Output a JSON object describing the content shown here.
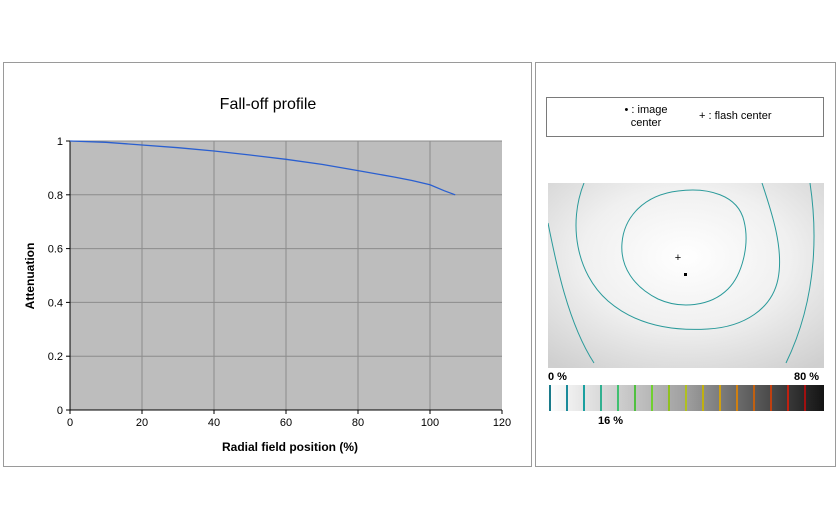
{
  "chart_data": {
    "type": "line",
    "title": "Fall-off profile",
    "xlabel": "Radial field position (%)",
    "ylabel": "Attenuation",
    "xlim": [
      0,
      120
    ],
    "ylim": [
      0,
      1
    ],
    "xticks": [
      "0",
      "20",
      "40",
      "60",
      "80",
      "100",
      "120"
    ],
    "yticks": [
      "0",
      "0.2",
      "0.4",
      "0.6",
      "0.8",
      "1"
    ],
    "grid": true,
    "series": [
      {
        "color": "#2a5fd0",
        "x": [
          0,
          10,
          20,
          30,
          40,
          50,
          60,
          70,
          80,
          90,
          95,
          100,
          104,
          107
        ],
        "y": [
          1.0,
          0.995,
          0.985,
          0.975,
          0.963,
          0.948,
          0.932,
          0.913,
          0.89,
          0.866,
          0.853,
          0.837,
          0.815,
          0.8
        ]
      }
    ]
  },
  "legend": {
    "image_center_symbol": "•",
    "image_center_text": ": image center",
    "flash_center_symbol": "+",
    "flash_center_text": ": flash center"
  },
  "scale": {
    "min_label": "0 %",
    "max_label": "80 %",
    "marker_label": "16 %"
  },
  "colors": {
    "plot_background": "#bdbdbd",
    "gridline": "#8c8c8c",
    "contour": "#2a9a9a"
  }
}
